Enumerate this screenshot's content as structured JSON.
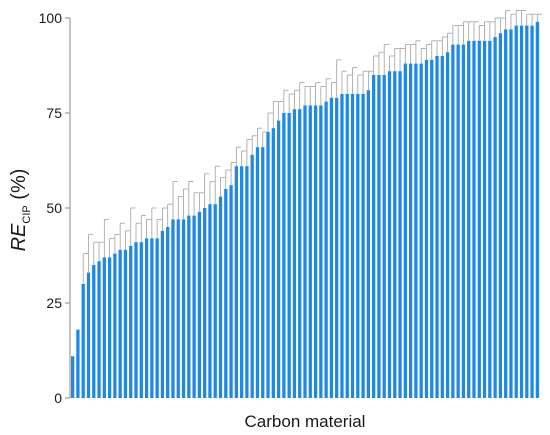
{
  "chart_data": {
    "type": "bar",
    "xlabel": "Carbon material",
    "ylabel": {
      "main": "RE",
      "subscript": "CIP",
      "suffix": " (%)"
    },
    "ylim": [
      0,
      100
    ],
    "yticks": [
      0,
      25,
      50,
      75,
      100
    ],
    "bar_color": "#1E88E5",
    "error_color": "#A0A0A0",
    "grid": false,
    "series": [
      {
        "values": [
          11,
          18,
          30,
          33,
          35,
          36,
          37,
          37,
          38,
          39,
          39,
          40,
          41,
          41,
          42,
          42,
          42,
          44,
          45,
          47,
          47,
          47,
          48,
          48,
          49,
          50,
          51,
          51,
          53,
          55,
          56,
          61,
          61,
          61,
          64,
          66,
          66,
          70,
          71,
          73,
          75,
          75,
          76,
          76,
          77,
          77,
          77,
          77,
          78,
          79,
          79,
          80,
          80,
          80,
          80,
          80,
          81,
          85,
          85,
          85,
          86,
          86,
          86,
          88,
          88,
          88,
          88,
          89,
          89,
          90,
          90,
          91,
          93,
          93,
          93,
          94,
          94,
          94,
          94,
          94,
          95,
          96,
          97,
          97,
          98,
          98,
          98,
          98,
          99
        ],
        "errors": [
          0,
          0,
          8,
          10,
          6,
          5,
          10,
          5,
          5,
          7,
          5,
          10,
          5,
          7,
          5,
          8,
          5,
          6,
          6,
          10,
          6,
          8,
          9,
          6,
          5,
          9,
          6,
          10,
          5,
          5,
          6,
          5,
          4,
          7,
          5,
          5,
          4,
          5,
          7,
          5,
          6,
          5,
          5,
          7,
          5,
          5,
          6,
          5,
          6,
          4,
          10,
          6,
          5,
          7,
          5,
          6,
          5,
          5,
          6,
          8,
          4,
          6,
          6,
          5,
          5,
          6,
          4,
          4,
          5,
          4,
          5,
          5,
          5,
          5,
          6,
          5,
          5,
          4,
          5,
          5,
          5,
          4,
          5,
          4,
          4,
          4,
          3,
          3,
          2
        ]
      }
    ]
  }
}
